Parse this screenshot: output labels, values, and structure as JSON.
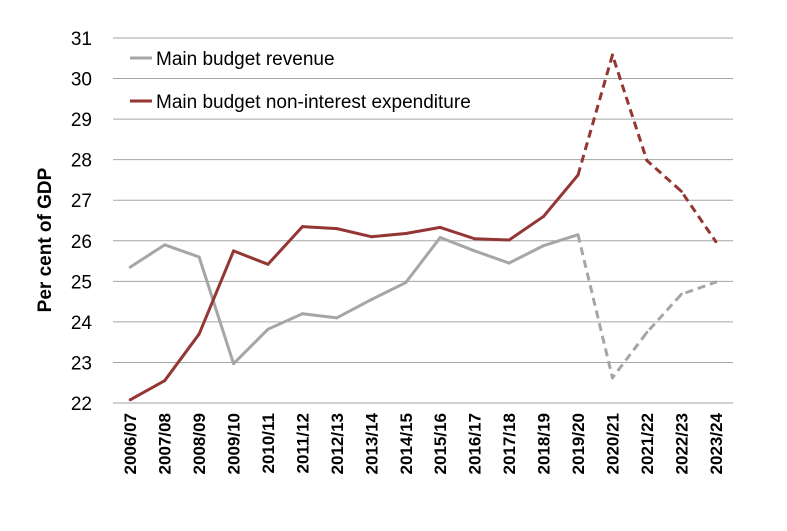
{
  "chart_data": {
    "type": "line",
    "categories": [
      "2006/07",
      "2007/08",
      "2008/09",
      "2009/10",
      "2010/11",
      "2011/12",
      "2012/13",
      "2013/14",
      "2014/15",
      "2015/16",
      "2016/17",
      "2017/18",
      "2018/19",
      "2019/20",
      "2020/21",
      "2021/22",
      "2022/23",
      "2023/24"
    ],
    "ylabel": "Per cent of GDP",
    "xlabel": "",
    "ylim": [
      22,
      31
    ],
    "yticks": [
      "22",
      "23",
      "24",
      "25",
      "26",
      "27",
      "28",
      "29",
      "30",
      "31"
    ],
    "grid": true,
    "legend": "top-left",
    "projection_starts_after": "2019/20",
    "series": [
      {
        "name": "Main budget revenue",
        "color": "#a6a6a6",
        "values": [
          25.35,
          25.9,
          25.6,
          22.97,
          23.82,
          24.2,
          24.1,
          24.55,
          24.97,
          26.08,
          25.75,
          25.45,
          25.88,
          26.15,
          22.62,
          23.74,
          24.68,
          24.98
        ]
      },
      {
        "name": "Main budget non-interest expenditure",
        "color": "#943634",
        "values": [
          22.08,
          22.55,
          23.7,
          25.75,
          25.42,
          26.35,
          26.3,
          26.1,
          26.18,
          26.33,
          26.05,
          26.02,
          26.6,
          27.62,
          30.58,
          27.98,
          27.22,
          25.98
        ]
      }
    ]
  }
}
